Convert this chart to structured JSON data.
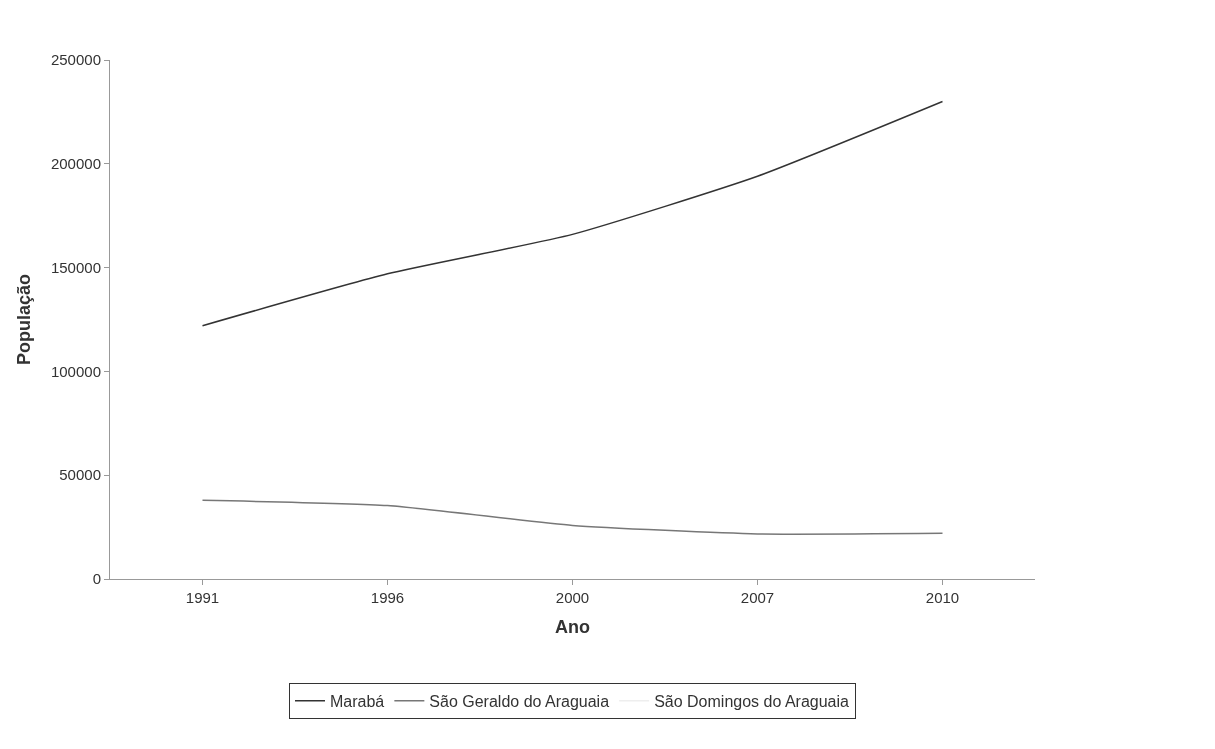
{
  "chart_data": {
    "type": "line",
    "xlabel": "Ano",
    "ylabel": "População",
    "categories": [
      "1991",
      "1996",
      "2000",
      "2007",
      "2010"
    ],
    "series": [
      {
        "name": "Marabá",
        "color": "#333333",
        "values": [
          122000,
          147000,
          166000,
          194000,
          230000
        ]
      },
      {
        "name": "São Geraldo do Araguaia",
        "color": "#777777",
        "values": [
          37900,
          35400,
          25800,
          21700,
          22000
        ]
      },
      {
        "name": "São Domingos do Araguaia",
        "color": "#eeeeee",
        "values": [
          null,
          null,
          null,
          null,
          null
        ]
      }
    ],
    "ylim": [
      0,
      250000
    ],
    "yticks": [
      0,
      50000,
      100000,
      150000,
      200000,
      250000
    ],
    "legend": "bottom",
    "marker": "none",
    "line_style": "solid"
  }
}
